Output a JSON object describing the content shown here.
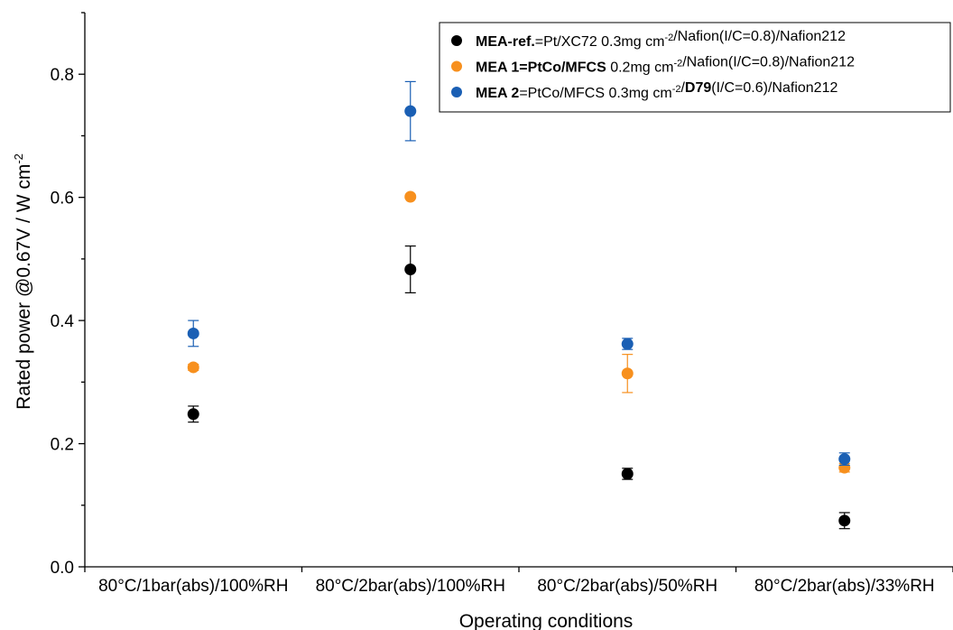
{
  "chart_data": {
    "type": "scatter",
    "xlabel": "Operating conditions",
    "ylabel_main": "Rated power @0.67V / W cm",
    "ylabel_sup": "-2",
    "categories": [
      "80°C/1bar(abs)/100%RH",
      "80°C/2bar(abs)/100%RH",
      "80°C/2bar(abs)/50%RH",
      "80°C/2bar(abs)/33%RH"
    ],
    "ylim": [
      0.0,
      0.9
    ],
    "yticks": [
      "0.0",
      "0.2",
      "0.4",
      "0.6",
      "0.8"
    ],
    "legend_position": "top-right",
    "series": [
      {
        "name": "MEA-ref.=Pt/XC72 0.3mg cm-2/Nafion(I/C=0.8)/Nafion212",
        "legend_parts": [
          {
            "t": "MEA-ref.",
            "b": true
          },
          {
            "t": "=Pt/XC72 0.3mg cm"
          },
          {
            "t": "-2",
            "sup": true
          },
          {
            "t": "/Nafion(I/C=0.8)/Nafion212"
          }
        ],
        "color": "#000000",
        "values": [
          0.248,
          0.483,
          0.151,
          0.075
        ],
        "errors": [
          0.013,
          0.038,
          0.009,
          0.013
        ]
      },
      {
        "name": "MEA 1=PtCo/MFCS 0.2mg cm-2/Nafion(I/C=0.8)/Nafion212",
        "legend_parts": [
          {
            "t": "MEA 1=PtCo/MFCS",
            "b": true
          },
          {
            "t": " 0.2mg cm"
          },
          {
            "t": "-2",
            "sup": true
          },
          {
            "t": "/Nafion(I/C=0.8)/Nafion212"
          }
        ],
        "color": "#f7901e",
        "values": [
          0.324,
          0.601,
          0.314,
          0.161
        ],
        "errors": [
          0.005,
          0.0,
          0.031,
          0.007
        ]
      },
      {
        "name": "MEA 2=PtCo/MFCS 0.3mg cm-2/D79(I/C=0.6)/Nafion212",
        "legend_parts": [
          {
            "t": "MEA 2",
            "b": true
          },
          {
            "t": "=PtCo/MFCS 0.3mg cm"
          },
          {
            "t": "-2",
            "sup": true
          },
          {
            "t": "/"
          },
          {
            "t": "D79",
            "b": true
          },
          {
            "t": "(I/C=0.6)/Nafion212"
          }
        ],
        "color": "#1a5fb4",
        "values": [
          0.379,
          0.74,
          0.362,
          0.175
        ],
        "errors": [
          0.021,
          0.048,
          0.009,
          0.01
        ]
      }
    ]
  }
}
